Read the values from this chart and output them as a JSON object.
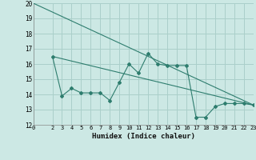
{
  "line1_x": [
    0,
    23
  ],
  "line1_y": [
    20,
    13.3
  ],
  "line2_x": [
    2,
    23
  ],
  "line2_y": [
    16.5,
    13.3
  ],
  "line3_x": [
    2,
    3,
    4,
    5,
    6,
    7,
    8,
    9,
    10,
    11,
    12,
    13,
    14,
    15,
    16,
    17,
    18,
    19,
    20,
    21,
    22,
    23
  ],
  "line3_y": [
    16.5,
    13.9,
    14.4,
    14.1,
    14.1,
    14.1,
    13.6,
    14.8,
    16.0,
    15.4,
    16.7,
    16.0,
    15.9,
    15.9,
    15.9,
    12.5,
    12.5,
    13.2,
    13.4,
    13.4,
    13.4,
    13.3
  ],
  "line_color": "#2e7d6e",
  "bg_color": "#cce8e4",
  "grid_color": "#aacfca",
  "xlabel": "Humidex (Indice chaleur)",
  "xlim": [
    0,
    23
  ],
  "ylim": [
    12,
    20
  ],
  "yticks": [
    12,
    13,
    14,
    15,
    16,
    17,
    18,
    19,
    20
  ],
  "xticks": [
    0,
    2,
    3,
    4,
    5,
    6,
    7,
    8,
    9,
    10,
    11,
    12,
    13,
    14,
    15,
    16,
    17,
    18,
    19,
    20,
    21,
    22,
    23
  ],
  "xtick_labels": [
    "0",
    "2",
    "3",
    "4",
    "5",
    "6",
    "7",
    "8",
    "9",
    "10",
    "11",
    "12",
    "13",
    "14",
    "15",
    "16",
    "17",
    "18",
    "19",
    "20",
    "21",
    "22",
    "23"
  ],
  "marker": "D",
  "markersize": 2.0,
  "linewidth": 0.8
}
